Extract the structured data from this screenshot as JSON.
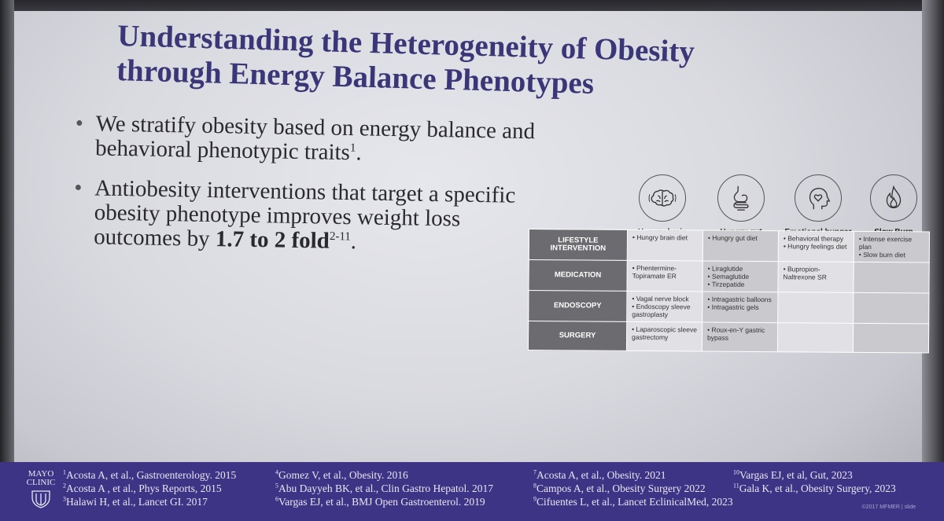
{
  "slide": {
    "title_line1": "Understanding the Heterogeneity of Obesity",
    "title_line2": "through Energy Balance Phenotypes",
    "bullet1_text": "We stratify obesity based on energy balance and behavioral phenotypic traits",
    "bullet1_sup": "1",
    "bullet1_end": ".",
    "bullet2_text": "Antiobesity interventions that target a specific obesity phenotype improves weight loss outcomes by ",
    "bullet2_bold": "1.7 to 2 fold",
    "bullet2_sup": "2-11",
    "bullet2_end": "."
  },
  "phenotypes": [
    {
      "label": "Hungry brain",
      "icon": "brain-icon"
    },
    {
      "label": "Hungry gut",
      "icon": "stomach-icon"
    },
    {
      "label": "Emotional hunger",
      "icon": "head-heart-icon"
    },
    {
      "label": "Slow Burn",
      "icon": "flame-icon"
    }
  ],
  "table": {
    "rows": [
      {
        "header": "LIFESTYLE\nINTERVENTION",
        "cells": [
          [
            "Hungry brain diet"
          ],
          [
            "Hungry gut diet"
          ],
          [
            "Behavioral therapy",
            "Hungry feelings diet"
          ],
          [
            "Intense exercise plan",
            "Slow burn diet"
          ]
        ]
      },
      {
        "header": "MEDICATION",
        "cells": [
          [
            "Phentermine-\nTopiramate ER"
          ],
          [
            "Liraglutide",
            "Semaglutide",
            "Tirzepatide"
          ],
          [
            "Bupropion-\nNaltrexone SR"
          ],
          []
        ]
      },
      {
        "header": "ENDOSCOPY",
        "cells": [
          [
            "Vagal nerve block",
            "Endoscopy sleeve\ngastroplasty"
          ],
          [
            "Intragastric balloons",
            "Intragastric gels"
          ],
          [],
          []
        ]
      },
      {
        "header": "SURGERY",
        "cells": [
          [
            "Laparoscopic sleeve\ngastrectomy"
          ],
          [
            "Roux-en-Y gastric\nbypass"
          ],
          [],
          []
        ]
      }
    ]
  },
  "footer": {
    "logo_line1": "MAYO",
    "logo_line2": "CLINIC",
    "references": [
      [
        {
          "n": "1",
          "text": "Acosta A, et al., Gastroenterology. 2015"
        },
        {
          "n": "2",
          "text": "Acosta A , et al.,  Phys Reports, 2015"
        },
        {
          "n": "3",
          "text": "Halawi H, et al., Lancet GI. 2017"
        }
      ],
      [
        {
          "n": "4",
          "text": "Gomez V, et al., Obesity. 2016"
        },
        {
          "n": "5",
          "text": "Abu Dayyeh BK, et al., Clin Gastro Hepatol. 2017"
        },
        {
          "n": "6",
          "text": "Vargas EJ, et al., BMJ Open Gastroenterol. 2019"
        }
      ],
      [
        {
          "n": "7",
          "text": "Acosta A, et al., Obesity. 2021"
        },
        {
          "n": "8",
          "text": "Campos A, et al., Obesity Surgery 2022"
        },
        {
          "n": "9",
          "text": "Cifuentes L, et al., Lancet EclinicalMed, 2023"
        }
      ],
      [
        {
          "n": "10",
          "text": "Vargas EJ, et al, Gut, 2023"
        },
        {
          "n": "11",
          "text": "Gala K, et al., Obesity Surgery, 2023"
        }
      ]
    ],
    "copyright": "©2017 MFMER | slide"
  },
  "colors": {
    "title": "#3b3677",
    "footer": "#3e3486",
    "row_header": "#6c6c70"
  }
}
